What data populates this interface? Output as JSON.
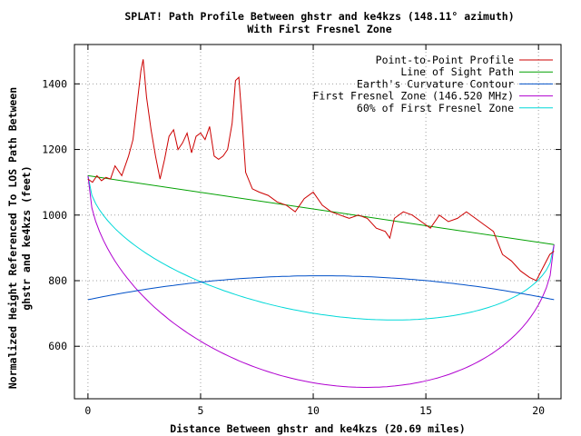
{
  "chart_data": {
    "type": "line",
    "title": "SPLAT! Path Profile Between ghstr and ke4kzs (148.11° azimuth)",
    "subtitle": "With First Fresnel Zone",
    "xlabel": "Distance Between ghstr and ke4kzs (20.69 miles)",
    "ylabel_line1": "Normalized Height Referenced To LOS Path Between",
    "ylabel_line2": "ghstr and ke4kzs (feet)",
    "xlim": [
      -0.6,
      21.0
    ],
    "ylim": [
      440,
      1520
    ],
    "xticks": [
      0,
      5,
      10,
      15,
      20
    ],
    "yticks": [
      600,
      800,
      1000,
      1200,
      1400
    ],
    "grid": true,
    "legend_position": "top-right",
    "series": [
      {
        "name": "Point-to-Point Profile",
        "color": "#cc0000",
        "x": [
          0,
          0.2,
          0.4,
          0.6,
          0.8,
          1.0,
          1.2,
          1.5,
          1.8,
          2.0,
          2.2,
          2.35,
          2.45,
          2.6,
          2.8,
          3.0,
          3.2,
          3.4,
          3.6,
          3.8,
          4.0,
          4.2,
          4.4,
          4.6,
          4.8,
          5.0,
          5.2,
          5.4,
          5.6,
          5.8,
          6.0,
          6.2,
          6.4,
          6.55,
          6.7,
          6.85,
          7.0,
          7.3,
          7.6,
          8.0,
          8.4,
          8.8,
          9.2,
          9.6,
          10.0,
          10.4,
          10.8,
          11.2,
          11.6,
          12.0,
          12.4,
          12.8,
          13.2,
          13.4,
          13.6,
          14.0,
          14.4,
          14.8,
          15.2,
          15.6,
          16.0,
          16.4,
          16.8,
          17.2,
          17.6,
          18.0,
          18.4,
          18.8,
          19.2,
          19.6,
          19.9,
          20.2,
          20.5,
          20.69
        ],
        "y": [
          1110,
          1100,
          1120,
          1105,
          1115,
          1110,
          1150,
          1120,
          1180,
          1230,
          1350,
          1440,
          1475,
          1360,
          1260,
          1180,
          1110,
          1170,
          1240,
          1260,
          1200,
          1220,
          1250,
          1190,
          1240,
          1250,
          1230,
          1270,
          1180,
          1170,
          1180,
          1200,
          1280,
          1410,
          1420,
          1280,
          1130,
          1080,
          1070,
          1060,
          1040,
          1030,
          1010,
          1050,
          1070,
          1030,
          1010,
          1000,
          990,
          1000,
          990,
          960,
          950,
          930,
          990,
          1010,
          1000,
          980,
          960,
          1000,
          980,
          990,
          1010,
          990,
          970,
          950,
          880,
          860,
          830,
          810,
          800,
          840,
          880,
          890
        ]
      },
      {
        "name": "Line of Sight Path",
        "color": "#00a000",
        "x": [
          0,
          20.69
        ],
        "y": [
          1120,
          910
        ]
      },
      {
        "name": "Earth's Curvature Contour",
        "color": "#0050c8",
        "shape": "parabola",
        "x_range": [
          0,
          20.69
        ],
        "y_ends": [
          742,
          742
        ],
        "y_mid": 815
      },
      {
        "name": "First Fresnel Zone (146.520 MHz)",
        "color": "#b000d0",
        "shape": "fresnel",
        "x_range": [
          0,
          20.69
        ],
        "max_clearance": 530
      },
      {
        "name": "60% of First Fresnel Zone",
        "color": "#00d8d8",
        "shape": "fresnel",
        "x_range": [
          0,
          20.69
        ],
        "max_clearance": 318
      }
    ]
  }
}
